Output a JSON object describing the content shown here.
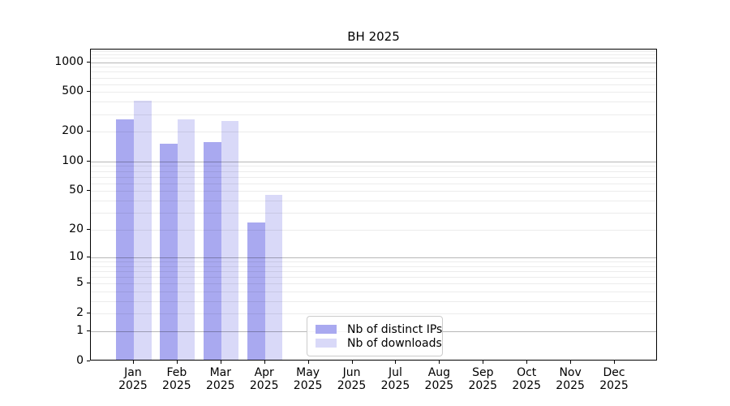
{
  "title": "BH 2025",
  "legend": {
    "items": [
      {
        "label": "Nb of distinct IPs",
        "color": "#a9a9f0"
      },
      {
        "label": "Nb of downloads",
        "color": "#d9d9f8"
      }
    ]
  },
  "chart_data": {
    "type": "bar",
    "title": "BH 2025",
    "categories": [
      "Jan 2025",
      "Feb 2025",
      "Mar 2025",
      "Apr 2025",
      "May 2025",
      "Jun 2025",
      "Jul 2025",
      "Aug 2025",
      "Sep 2025",
      "Oct 2025",
      "Nov 2025",
      "Dec 2025"
    ],
    "series": [
      {
        "name": "Nb of distinct IPs",
        "color": "#a9a9f0",
        "values": [
          257,
          145,
          150,
          23,
          0,
          0,
          0,
          0,
          0,
          0,
          0,
          0
        ]
      },
      {
        "name": "Nb of downloads",
        "color": "#d9d9f8",
        "values": [
          395,
          254,
          245,
          44,
          0,
          0,
          0,
          0,
          0,
          0,
          0,
          0
        ]
      }
    ],
    "xlabel": "",
    "ylabel": "",
    "yscale": "log1p",
    "yticks": [
      0,
      1,
      2,
      5,
      10,
      20,
      50,
      100,
      200,
      500,
      1000
    ],
    "ylim": [
      0,
      1340
    ],
    "grid": "horizontal, major and minor log lines",
    "legend_position": "lower center",
    "bar_group_width_fraction": 0.8
  },
  "colors": {
    "major_grid": "#b8b8b8",
    "minor_grid": "#ececec",
    "axis": "#000000",
    "background": "#ffffff"
  }
}
